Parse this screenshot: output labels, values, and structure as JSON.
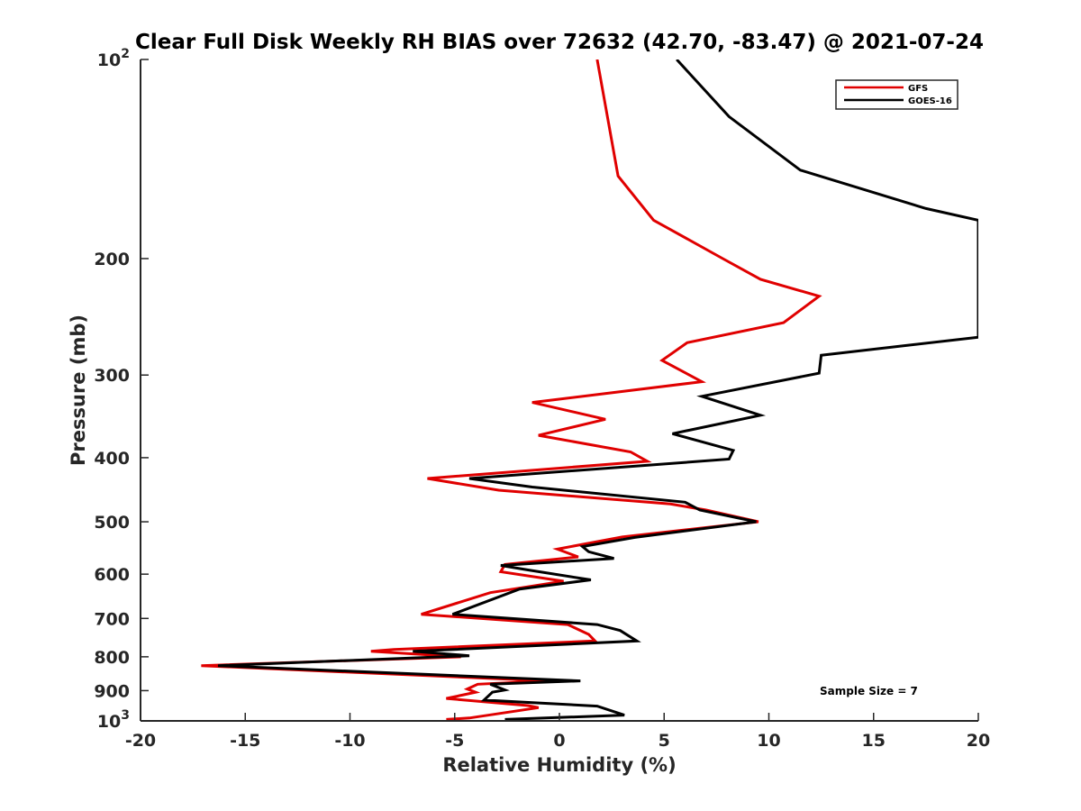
{
  "chart_data": {
    "type": "line",
    "title": "Clear Full Disk Weekly RH BIAS over 72632 (42.70, -83.47) @ 2021-07-24",
    "xlabel": "Relative Humidity (%)",
    "ylabel": "Pressure (mb)",
    "xlim": [
      -20,
      20
    ],
    "ylim": [
      1000,
      100
    ],
    "y_scale": "log",
    "y_reversed": true,
    "x_ticks": [
      "-20",
      "-15",
      "-10",
      "-5",
      "0",
      "5",
      "10",
      "15",
      "20"
    ],
    "y_ticks": [
      {
        "value": 100,
        "base": "10",
        "exp": "2"
      },
      {
        "value": 200,
        "label": "200"
      },
      {
        "value": 300,
        "label": "300"
      },
      {
        "value": 400,
        "label": "400"
      },
      {
        "value": 500,
        "label": "500"
      },
      {
        "value": 600,
        "label": "600"
      },
      {
        "value": 700,
        "label": "700"
      },
      {
        "value": 800,
        "label": "800"
      },
      {
        "value": 900,
        "label": "900"
      },
      {
        "value": 1000,
        "base": "10",
        "exp": "3"
      }
    ],
    "grid": false,
    "legend_position": "top-right",
    "annotation": "Sample Size = 7",
    "series": [
      {
        "name": "GFS",
        "color": "#e00000",
        "points": [
          [
            1.8,
            100
          ],
          [
            2.8,
            150
          ],
          [
            4.5,
            175
          ],
          [
            7.8,
            200
          ],
          [
            9.6,
            215
          ],
          [
            12.4,
            228
          ],
          [
            10.7,
            250
          ],
          [
            6.1,
            268
          ],
          [
            4.9,
            285
          ],
          [
            6.8,
            307
          ],
          [
            -1.3,
            330
          ],
          [
            2.2,
            350
          ],
          [
            -1.0,
            370
          ],
          [
            3.4,
            392
          ],
          [
            4.2,
            405
          ],
          [
            -6.3,
            430
          ],
          [
            -2.9,
            448
          ],
          [
            5.3,
            470
          ],
          [
            7.0,
            480
          ],
          [
            9.5,
            500
          ],
          [
            3.0,
            527
          ],
          [
            -0.1,
            550
          ],
          [
            0.9,
            565
          ],
          [
            -2.6,
            580
          ],
          [
            -2.8,
            595
          ],
          [
            0.2,
            615
          ],
          [
            -3.3,
            640
          ],
          [
            -6.6,
            690
          ],
          [
            0.4,
            715
          ],
          [
            1.4,
            740
          ],
          [
            1.7,
            757
          ],
          [
            -7.9,
            780
          ],
          [
            -9.0,
            785
          ],
          [
            -4.7,
            800
          ],
          [
            -17.1,
            825
          ],
          [
            -0.6,
            870
          ],
          [
            -3.9,
            880
          ],
          [
            -4.4,
            895
          ],
          [
            -4.0,
            905
          ],
          [
            -5.4,
            925
          ],
          [
            -1.5,
            948
          ],
          [
            -1.0,
            955
          ],
          [
            -4.3,
            990
          ],
          [
            -5.4,
            995
          ]
        ]
      },
      {
        "name": "GOES-16",
        "color": "#000000",
        "points": [
          [
            5.6,
            100
          ],
          [
            8.1,
            122
          ],
          [
            11.5,
            147
          ],
          [
            17.5,
            168
          ],
          [
            20.0,
            175
          ],
          [
            20.0,
            263
          ],
          [
            12.5,
            280
          ],
          [
            12.4,
            298
          ],
          [
            6.8,
            323
          ],
          [
            9.6,
            345
          ],
          [
            5.4,
            368
          ],
          [
            8.3,
            390
          ],
          [
            8.1,
            402
          ],
          [
            -4.3,
            430
          ],
          [
            -1.3,
            443
          ],
          [
            6.0,
            467
          ],
          [
            6.7,
            480
          ],
          [
            9.4,
            500
          ],
          [
            3.6,
            528
          ],
          [
            1.1,
            545
          ],
          [
            1.4,
            555
          ],
          [
            2.6,
            568
          ],
          [
            -2.8,
            582
          ],
          [
            -1.4,
            592
          ],
          [
            1.5,
            612
          ],
          [
            -1.9,
            632
          ],
          [
            -5.1,
            690
          ],
          [
            1.8,
            715
          ],
          [
            2.9,
            730
          ],
          [
            3.7,
            757
          ],
          [
            -7.0,
            785
          ],
          [
            -4.3,
            797
          ],
          [
            -16.3,
            825
          ],
          [
            1.0,
            870
          ],
          [
            -3.3,
            880
          ],
          [
            -2.6,
            898
          ],
          [
            -3.2,
            905
          ],
          [
            -3.6,
            930
          ],
          [
            1.8,
            950
          ],
          [
            3.1,
            980
          ],
          [
            -2.6,
            995
          ]
        ]
      }
    ]
  }
}
